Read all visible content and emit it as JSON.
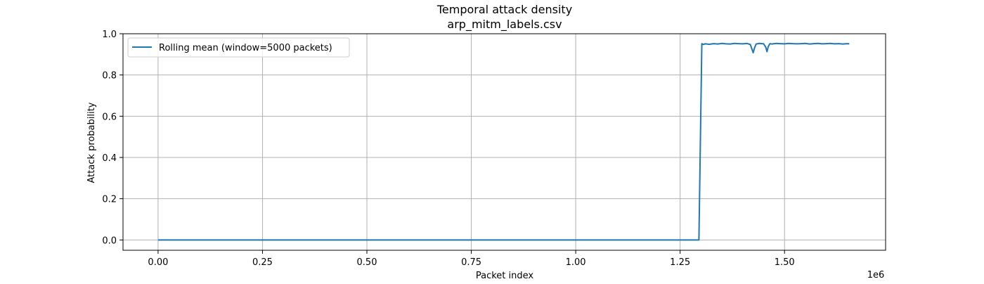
{
  "chart_data": {
    "type": "line",
    "title": "Temporal attack density",
    "subtitle": "arp_mitm_labels.csv",
    "xlabel": "Packet index",
    "ylabel": "Attack probability",
    "x_offset_label": "1e6",
    "x_scale": 1000000,
    "xlim": [
      -84000,
      1742000
    ],
    "ylim": [
      -0.05,
      1.0
    ],
    "xticks": [
      0,
      250000,
      500000,
      750000,
      1000000,
      1250000,
      1500000
    ],
    "xtick_labels": [
      "0.00",
      "0.25",
      "0.50",
      "0.75",
      "1.00",
      "1.25",
      "1.50"
    ],
    "yticks": [
      0.0,
      0.2,
      0.4,
      0.6,
      0.8,
      1.0
    ],
    "ytick_labels": [
      "0.0",
      "0.2",
      "0.4",
      "0.6",
      "0.8",
      "1.0"
    ],
    "grid": true,
    "legend_position": "top-left",
    "series": [
      {
        "name": "Rolling mean (window=5000 packets)",
        "color": "#1f77b4",
        "x": [
          0,
          1295000,
          1302000,
          1305000,
          1310000,
          1320000,
          1330000,
          1340000,
          1350000,
          1360000,
          1370000,
          1380000,
          1390000,
          1400000,
          1410000,
          1418000,
          1422000,
          1425000,
          1428000,
          1432000,
          1440000,
          1450000,
          1455000,
          1458000,
          1461000,
          1465000,
          1470000,
          1480000,
          1490000,
          1500000,
          1510000,
          1520000,
          1530000,
          1540000,
          1550000,
          1560000,
          1570000,
          1580000,
          1590000,
          1600000,
          1610000,
          1620000,
          1630000,
          1640000,
          1650000,
          1655000
        ],
        "y": [
          0.0,
          0.0,
          0.952,
          0.948,
          0.951,
          0.949,
          0.952,
          0.95,
          0.953,
          0.951,
          0.95,
          0.953,
          0.952,
          0.951,
          0.953,
          0.948,
          0.925,
          0.908,
          0.93,
          0.95,
          0.953,
          0.951,
          0.935,
          0.913,
          0.938,
          0.952,
          0.95,
          0.953,
          0.952,
          0.951,
          0.953,
          0.952,
          0.951,
          0.952,
          0.953,
          0.95,
          0.952,
          0.953,
          0.951,
          0.952,
          0.953,
          0.951,
          0.952,
          0.95,
          0.952,
          0.951
        ]
      }
    ]
  }
}
